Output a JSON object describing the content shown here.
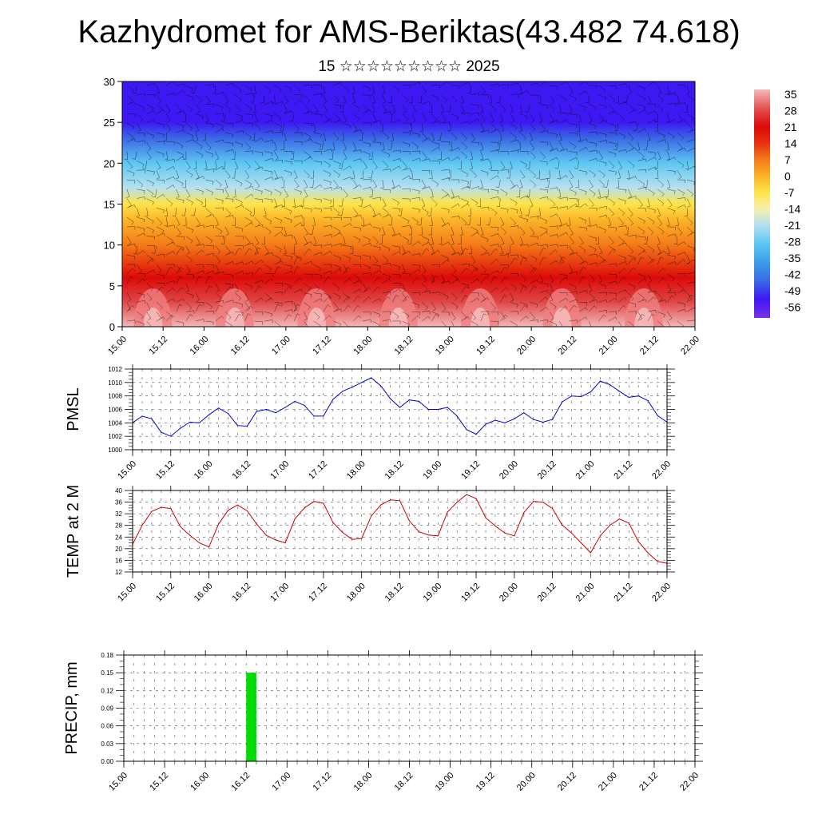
{
  "header": {
    "title": "Kazhydromet for AMS-Beriktas(43.482 74.618)",
    "subtitle": "15 ☆☆☆☆☆☆☆☆☆ 2025"
  },
  "colors": {
    "pmsl_line": "#0000cc",
    "temp_line": "#cc0000",
    "precip_bar": "#00dd00"
  },
  "chart_data": [
    {
      "type": "heatmap",
      "name_id": "vertical-profile",
      "ylim": [
        0,
        30
      ],
      "y_ticks": [
        "0",
        "5",
        "10",
        "15",
        "20",
        "25",
        "30"
      ],
      "x_ticks": [
        "15.00",
        "15.12",
        "16.00",
        "16.12",
        "17.00",
        "17.12",
        "18.00",
        "18.12",
        "19.00",
        "19.12",
        "20.00",
        "20.12",
        "21.00",
        "21.12",
        "22.00"
      ],
      "colorbar_labels": [
        "35",
        "28",
        "21",
        "14",
        "7",
        "0",
        "-7",
        "-14",
        "-21",
        "-28",
        "-35",
        "-42",
        "-49",
        "-56"
      ],
      "colorbar_range": [
        -60,
        38
      ],
      "wind_barbs": true
    },
    {
      "type": "line",
      "name_id": "pmsl",
      "ylabel": "PMSL",
      "ylim": [
        1000,
        1012
      ],
      "y_ticks": [
        "1000",
        "1002",
        "1004",
        "1006",
        "1008",
        "1010",
        "1012"
      ],
      "x_ticks": [
        "15.00",
        "15.12",
        "16.00",
        "16.12",
        "17.00",
        "17.12",
        "18.00",
        "18.12",
        "19.00",
        "19.12",
        "20.00",
        "20.12",
        "21.00",
        "21.12",
        "22.00"
      ],
      "x_hours": [
        0,
        3,
        6,
        9,
        12,
        15,
        18,
        21,
        24,
        27,
        30,
        33,
        36,
        39,
        42,
        45,
        48,
        51,
        54,
        57,
        60,
        63,
        66,
        69,
        72,
        75,
        78,
        81,
        84,
        87,
        90,
        93,
        96,
        99,
        102,
        105,
        108,
        111,
        114,
        117,
        120,
        123,
        126,
        129,
        132,
        135,
        138,
        141,
        144,
        147,
        150,
        153,
        156,
        159,
        162,
        165,
        168
      ],
      "values": [
        1004.0,
        1005.0,
        1004.6,
        1002.6,
        1002.0,
        1003.2,
        1004.1,
        1004.0,
        1005.2,
        1006.2,
        1005.4,
        1003.6,
        1003.5,
        1005.7,
        1006.0,
        1005.5,
        1006.3,
        1007.2,
        1006.6,
        1005.0,
        1005.0,
        1007.5,
        1008.7,
        1009.3,
        1010.0,
        1010.7,
        1009.5,
        1007.6,
        1006.3,
        1007.4,
        1007.2,
        1006.0,
        1006.0,
        1006.3,
        1005.0,
        1003.0,
        1002.3,
        1003.8,
        1004.4,
        1004.0,
        1004.6,
        1005.5,
        1004.5,
        1004.1,
        1004.5,
        1007.1,
        1008.0,
        1007.9,
        1008.6,
        1010.2,
        1009.7,
        1008.7,
        1007.8,
        1008.0,
        1007.3,
        1005.1,
        1004.1
      ]
    },
    {
      "type": "line",
      "name_id": "temp-2m",
      "ylabel": "TEMP at 2 M",
      "ylim": [
        12,
        40
      ],
      "y_ticks": [
        "12",
        "16",
        "20",
        "24",
        "28",
        "32",
        "36",
        "40"
      ],
      "x_ticks": [
        "15.00",
        "15.12",
        "16.00",
        "16.12",
        "17.00",
        "17.12",
        "18.00",
        "18.12",
        "19.00",
        "19.12",
        "20.00",
        "20.12",
        "21.00",
        "21.12",
        "22.00"
      ],
      "x_hours": [
        0,
        3,
        6,
        9,
        12,
        15,
        18,
        21,
        24,
        27,
        30,
        33,
        36,
        39,
        42,
        45,
        48,
        51,
        54,
        57,
        60,
        63,
        66,
        69,
        72,
        75,
        78,
        81,
        84,
        87,
        90,
        93,
        96,
        99,
        102,
        105,
        108,
        111,
        114,
        117,
        120,
        123,
        126,
        129,
        132,
        135,
        138,
        141,
        144,
        147,
        150,
        153,
        156,
        159,
        162,
        165,
        168
      ],
      "values": [
        21.5,
        28.0,
        32.8,
        34.2,
        33.8,
        27.6,
        24.6,
        22.0,
        20.6,
        28.4,
        33.2,
        35.0,
        33.0,
        28.5,
        24.6,
        23.0,
        22.0,
        30.2,
        34.0,
        36.2,
        35.6,
        29.0,
        25.6,
        23.2,
        23.5,
        31.2,
        35.0,
        36.8,
        36.5,
        29.6,
        25.8,
        24.7,
        24.4,
        32.6,
        36.0,
        38.6,
        37.2,
        30.6,
        27.8,
        25.4,
        24.4,
        32.4,
        36.2,
        36.0,
        33.8,
        28.2,
        25.4,
        22.0,
        18.6,
        24.4,
        28.0,
        30.2,
        28.8,
        22.4,
        18.6,
        15.6,
        15.0
      ]
    },
    {
      "type": "bar",
      "name_id": "precip",
      "ylabel": "PRECIP, mm",
      "ylim": [
        0,
        0.18
      ],
      "y_ticks": [
        "0.00",
        "0.03",
        "0.06",
        "0.09",
        "0.12",
        "0.15",
        "0.18"
      ],
      "x_ticks": [
        "15.00",
        "15.12",
        "16.00",
        "16.12",
        "17.00",
        "17.12",
        "18.00",
        "18.12",
        "19.00",
        "19.12",
        "20.00",
        "20.12",
        "21.00",
        "21.12",
        "22.00"
      ],
      "bars": [
        {
          "x_hour": 37.5,
          "width_hours": 3,
          "value": 0.15
        }
      ]
    }
  ]
}
